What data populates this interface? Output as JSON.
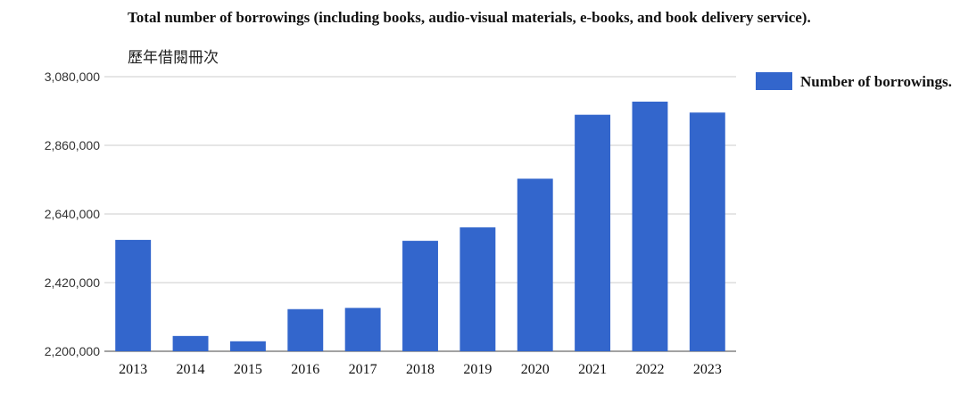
{
  "header": {
    "title": "Total number of borrowings (including books, audio-visual materials, e-books, and book delivery service).",
    "subtitle": "歷年借閱冊次"
  },
  "chart_data": {
    "type": "bar",
    "title": "Total number of borrowings (including books, audio-visual materials, e-books, and book delivery service).",
    "subtitle": "歷年借閱冊次",
    "xlabel": "",
    "ylabel": "",
    "categories": [
      "2013",
      "2014",
      "2015",
      "2016",
      "2017",
      "2018",
      "2019",
      "2020",
      "2021",
      "2022",
      "2023"
    ],
    "series": [
      {
        "name": "Number of borrowings.",
        "color": "#3366cc",
        "values": [
          2557000,
          2249000,
          2232000,
          2335000,
          2339000,
          2554000,
          2597000,
          2753000,
          2958000,
          3000000,
          2965000
        ]
      }
    ],
    "ylim": [
      2200000,
      3080000
    ],
    "yticks": [
      2200000,
      2420000,
      2640000,
      2860000,
      3080000
    ],
    "ytick_labels": [
      "2,200,000",
      "2,420,000",
      "2,640,000",
      "2,860,000",
      "3,080,000"
    ],
    "grid": true,
    "legend_position": "right-top"
  }
}
